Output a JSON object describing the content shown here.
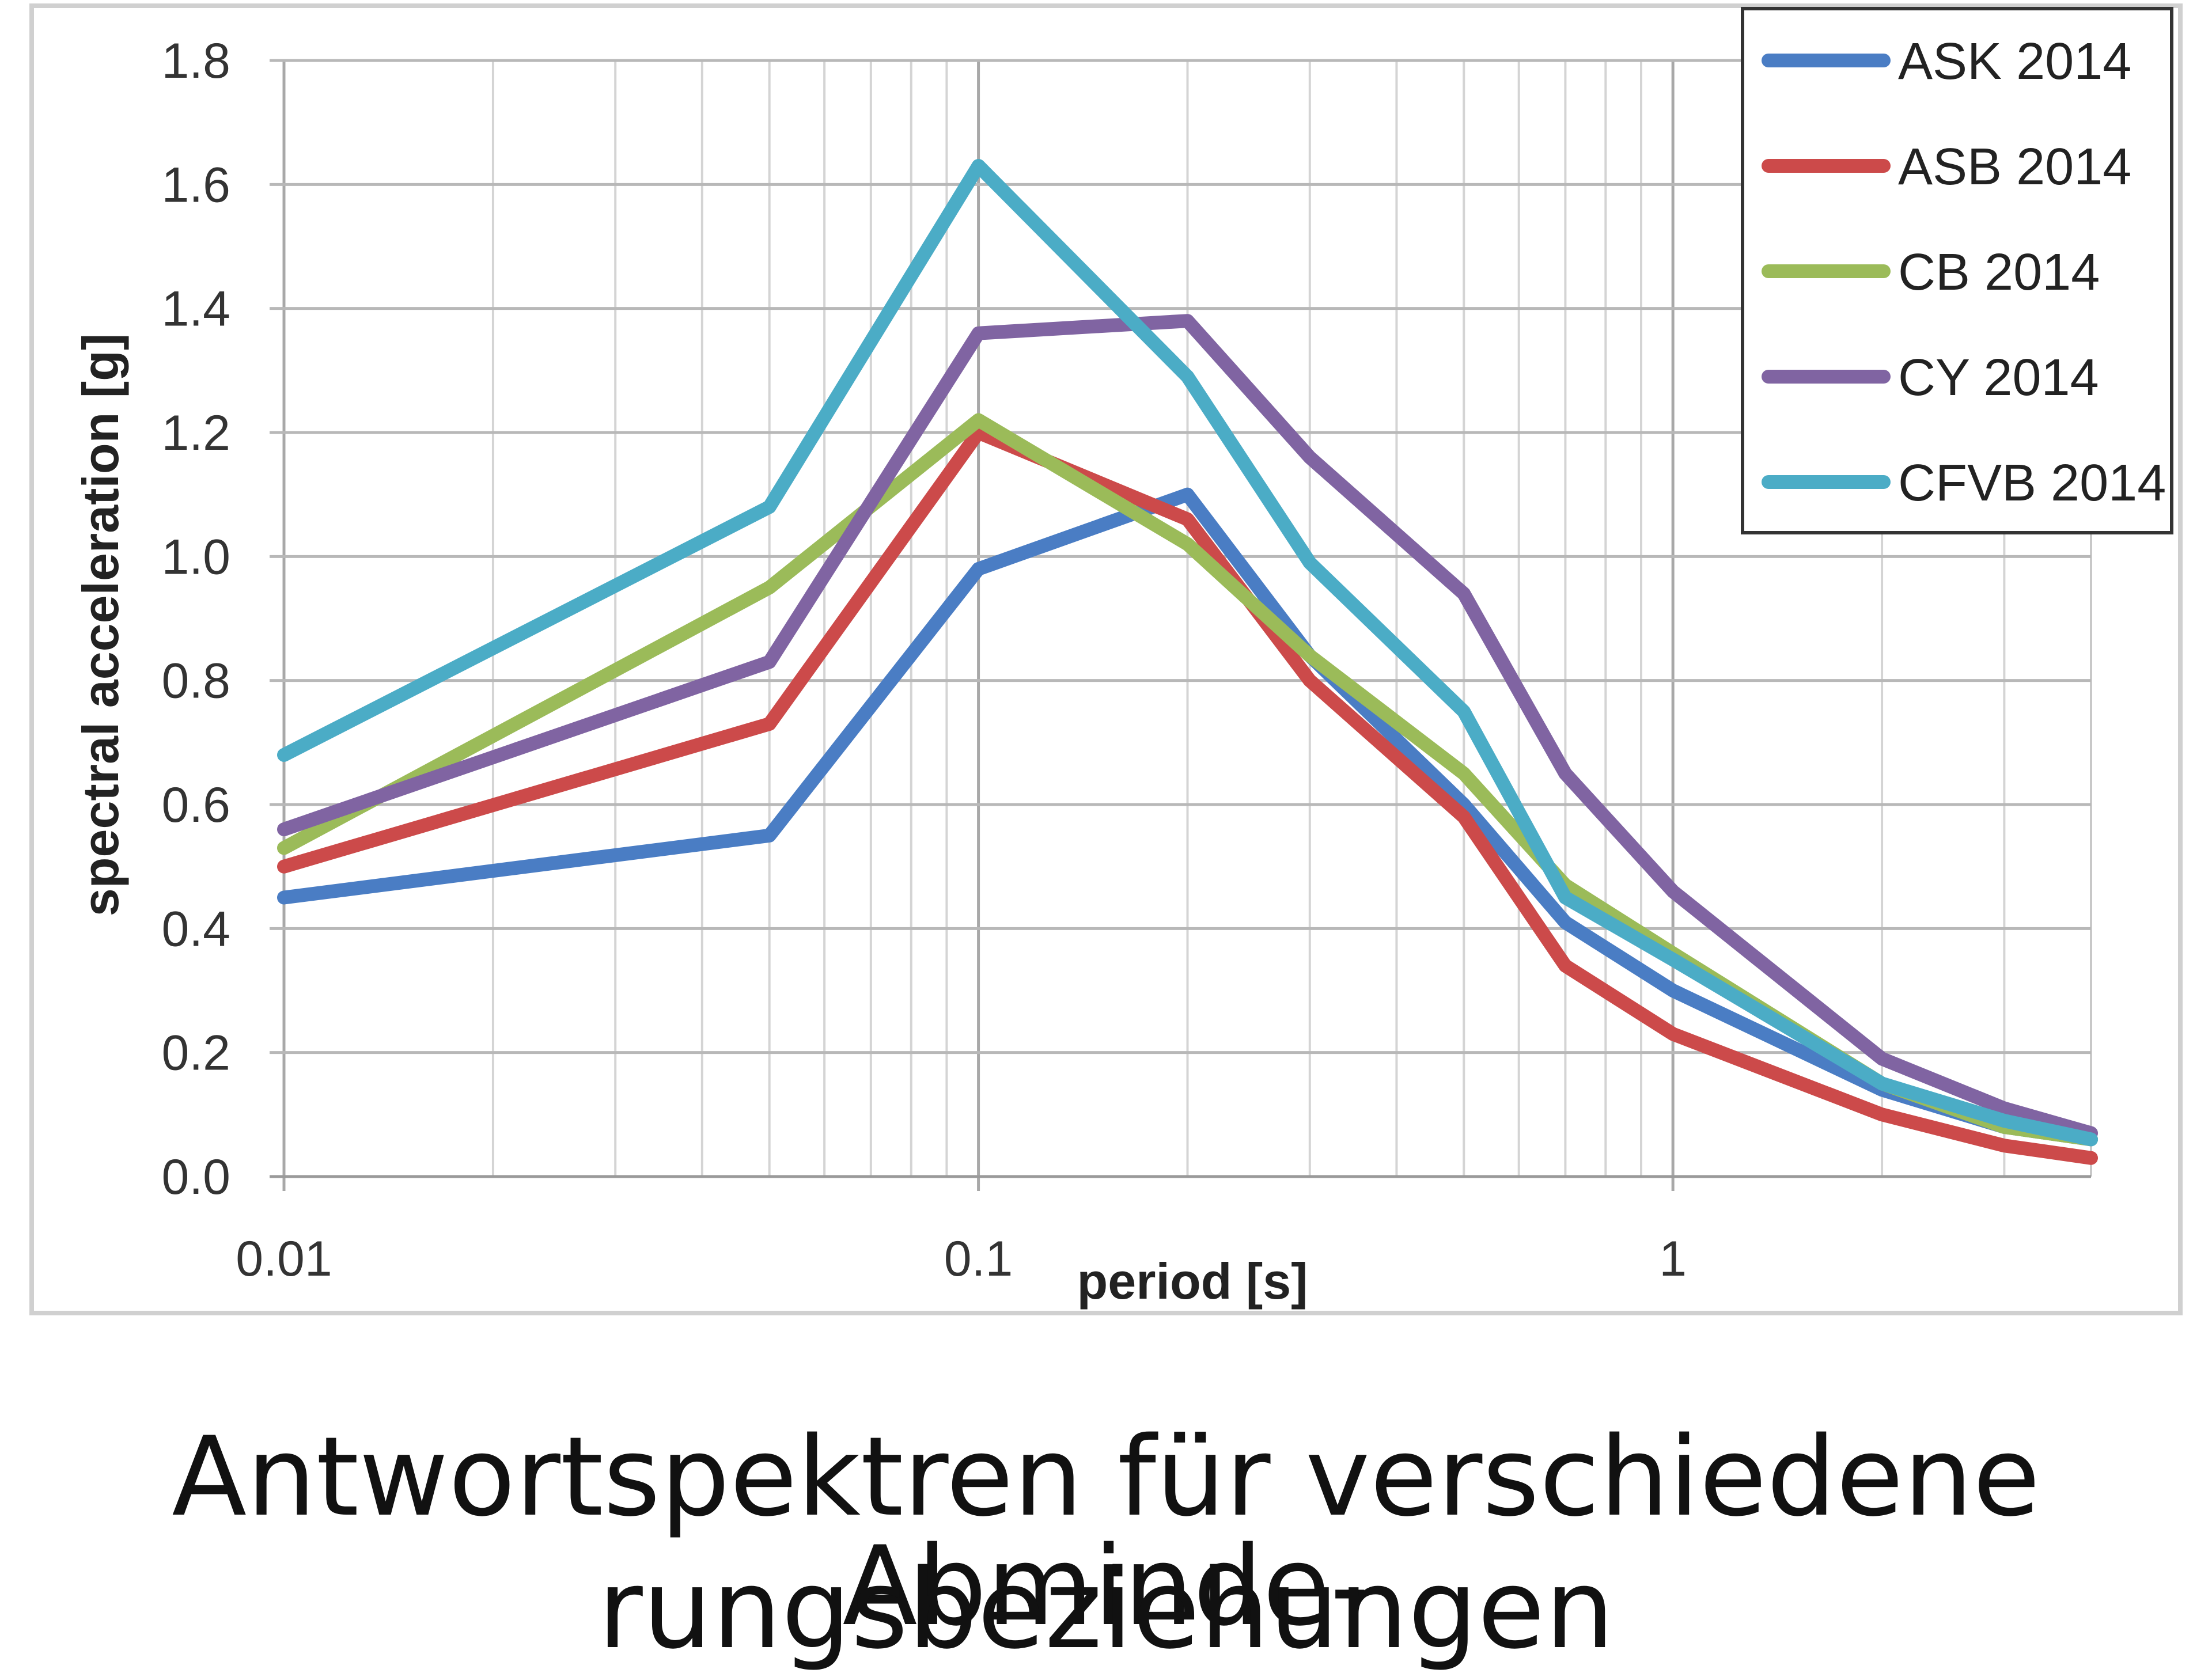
{
  "chart_data": {
    "type": "line",
    "title": "",
    "xlabel": "period [s]",
    "ylabel": "spectral acceleration [g]",
    "xscale": "log",
    "xlim": [
      0.01,
      4
    ],
    "ylim": [
      0,
      1.8
    ],
    "x_ticks": [
      0.01,
      0.1,
      1
    ],
    "x_tick_labels": [
      "0.01",
      "0.1",
      "1"
    ],
    "y_ticks": [
      0.0,
      0.2,
      0.4,
      0.6,
      0.8,
      1.0,
      1.2,
      1.4,
      1.6,
      1.8
    ],
    "y_tick_labels": [
      "0.0",
      "0.2",
      "0.4",
      "0.6",
      "0.8",
      "1.0",
      "1.2",
      "1.4",
      "1.6",
      "1.8"
    ],
    "grid": true,
    "legend_position": "top-right",
    "x": [
      0.01,
      0.05,
      0.1,
      0.2,
      0.3,
      0.5,
      0.7,
      1.0,
      2.0,
      3.0,
      4.0
    ],
    "series": [
      {
        "name": "ASK 2014",
        "color": "#4a7dc4",
        "values": [
          0.45,
          0.55,
          0.98,
          1.1,
          0.84,
          0.6,
          0.41,
          0.3,
          0.14,
          0.08,
          0.06
        ]
      },
      {
        "name": "ASB 2014",
        "color": "#cc4a4a",
        "values": [
          0.5,
          0.73,
          1.2,
          1.06,
          0.8,
          0.58,
          0.34,
          0.23,
          0.1,
          0.05,
          0.03
        ]
      },
      {
        "name": "CB 2014",
        "color": "#9bbb59",
        "values": [
          0.53,
          0.95,
          1.22,
          1.02,
          0.84,
          0.65,
          0.47,
          0.36,
          0.15,
          0.08,
          0.06
        ]
      },
      {
        "name": "CY 2014",
        "color": "#8064a2",
        "values": [
          0.56,
          0.83,
          1.36,
          1.38,
          1.16,
          0.94,
          0.65,
          0.46,
          0.19,
          0.11,
          0.07
        ]
      },
      {
        "name": "CFVB 2014",
        "color": "#4bacc6",
        "values": [
          0.68,
          1.08,
          1.63,
          1.29,
          0.99,
          0.75,
          0.45,
          0.35,
          0.15,
          0.09,
          0.06
        ]
      }
    ]
  },
  "caption": {
    "line1": "Antwortspektren für verschiedene Abminde-",
    "line2": "rungsbeziehungen"
  }
}
